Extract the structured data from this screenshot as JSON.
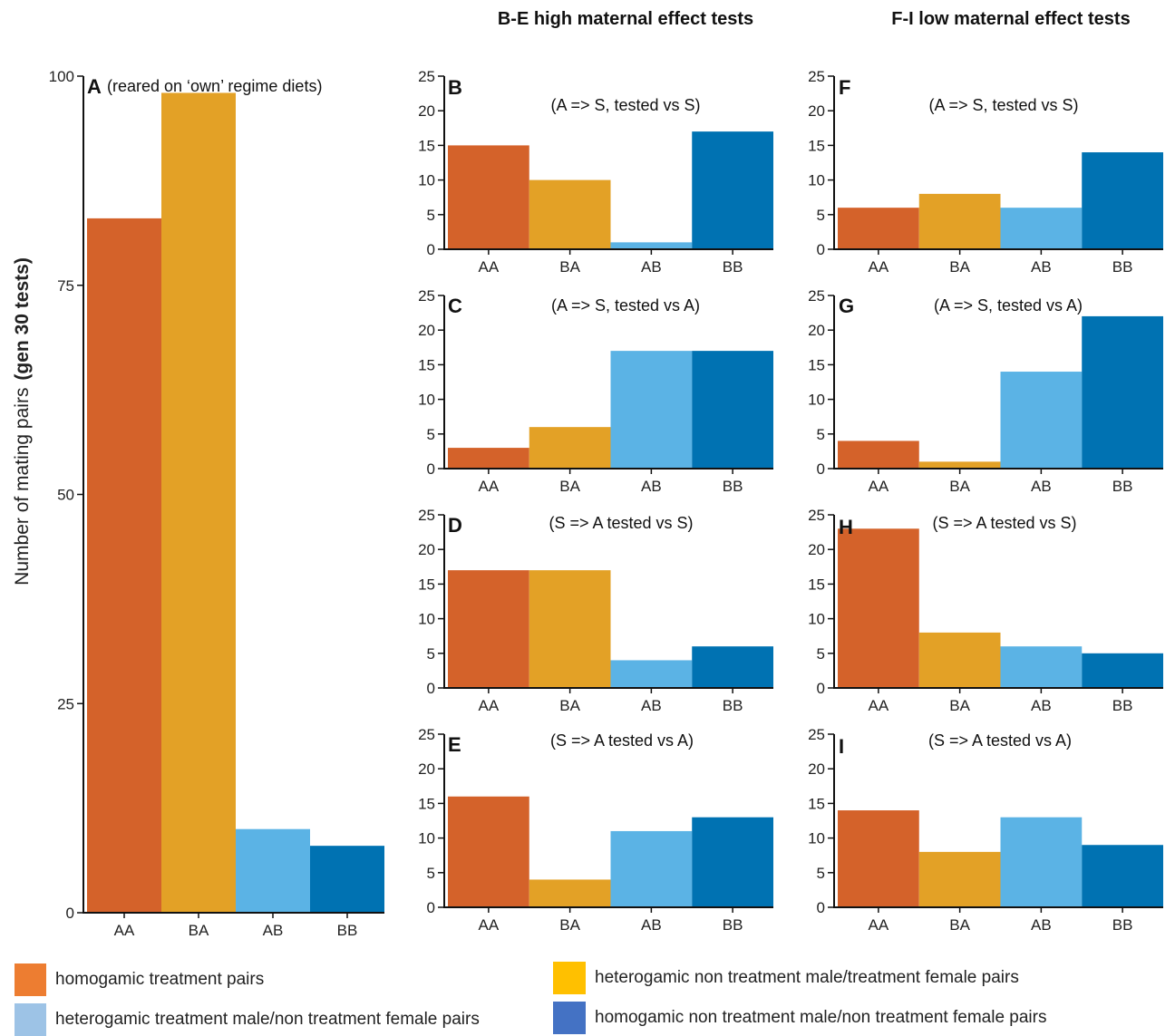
{
  "colors": {
    "AA": "#d4622a",
    "BA": "#e3a126",
    "AB": "#5bb3e5",
    "BB": "#0072b2"
  },
  "group_titles": {
    "high": "B-E high maternal effect tests",
    "low": "F-I low maternal effect tests"
  },
  "ylabel": {
    "main": "Number of mating pairs",
    "bold": "(gen 30 tests)"
  },
  "legend": [
    {
      "label": "homogamic treatment pairs",
      "color": "#ed7d31"
    },
    {
      "label": "heterogamic non treatment male/treatment female pairs",
      "color": "#ffc000"
    },
    {
      "label": "heterogamic treatment male/non treatment female pairs",
      "color": "#9dc3e6"
    },
    {
      "label": "homogamic non treatment male/non treatment female pairs",
      "color": "#4472c4"
    }
  ],
  "chart_data": [
    {
      "id": "A",
      "type": "bar",
      "letter": "A",
      "subtitle": "(reared on ‘own’ regime diets)",
      "categories": [
        "AA",
        "BA",
        "AB",
        "BB"
      ],
      "values": [
        83,
        98,
        10,
        8
      ],
      "ylim": [
        0,
        100
      ],
      "yticks": [
        0,
        25,
        50,
        75,
        100
      ]
    },
    {
      "id": "B",
      "type": "bar",
      "letter": "B",
      "subtitle": "(A => S, tested vs S)",
      "categories": [
        "AA",
        "BA",
        "AB",
        "BB"
      ],
      "values": [
        15,
        10,
        1,
        17
      ],
      "ylim": [
        0,
        25
      ],
      "yticks": [
        0,
        5,
        10,
        15,
        20,
        25
      ]
    },
    {
      "id": "C",
      "type": "bar",
      "letter": "C",
      "subtitle": "(A => S, tested vs A)",
      "categories": [
        "AA",
        "BA",
        "AB",
        "BB"
      ],
      "values": [
        3,
        6,
        17,
        17
      ],
      "ylim": [
        0,
        25
      ],
      "yticks": [
        0,
        5,
        10,
        15,
        20,
        25
      ]
    },
    {
      "id": "D",
      "type": "bar",
      "letter": "D",
      "subtitle": "(S => A tested vs S)",
      "categories": [
        "AA",
        "BA",
        "AB",
        "BB"
      ],
      "values": [
        17,
        17,
        4,
        6
      ],
      "ylim": [
        0,
        25
      ],
      "yticks": [
        0,
        5,
        10,
        15,
        20,
        25
      ]
    },
    {
      "id": "E",
      "type": "bar",
      "letter": "E",
      "subtitle": "(S => A tested vs A)",
      "categories": [
        "AA",
        "BA",
        "AB",
        "BB"
      ],
      "values": [
        16,
        4,
        11,
        13
      ],
      "ylim": [
        0,
        25
      ],
      "yticks": [
        0,
        5,
        10,
        15,
        20,
        25
      ]
    },
    {
      "id": "F",
      "type": "bar",
      "letter": "F",
      "subtitle": "(A => S, tested vs S)",
      "categories": [
        "AA",
        "BA",
        "AB",
        "BB"
      ],
      "values": [
        6,
        8,
        6,
        14
      ],
      "ylim": [
        0,
        25
      ],
      "yticks": [
        0,
        5,
        10,
        15,
        20,
        25
      ]
    },
    {
      "id": "G",
      "type": "bar",
      "letter": "G",
      "subtitle": "(A => S, tested vs A)",
      "categories": [
        "AA",
        "BA",
        "AB",
        "BB"
      ],
      "values": [
        4,
        1,
        14,
        22
      ],
      "ylim": [
        0,
        25
      ],
      "yticks": [
        0,
        5,
        10,
        15,
        20,
        25
      ]
    },
    {
      "id": "H",
      "type": "bar",
      "letter": "H",
      "subtitle": "(S => A tested vs S)",
      "categories": [
        "AA",
        "BA",
        "AB",
        "BB"
      ],
      "values": [
        23,
        8,
        6,
        5
      ],
      "ylim": [
        0,
        25
      ],
      "yticks": [
        0,
        5,
        10,
        15,
        20,
        25
      ]
    },
    {
      "id": "I",
      "type": "bar",
      "letter": "I",
      "subtitle": "(S => A tested vs A)",
      "categories": [
        "AA",
        "BA",
        "AB",
        "BB"
      ],
      "values": [
        14,
        8,
        13,
        9
      ],
      "ylim": [
        0,
        25
      ],
      "yticks": [
        0,
        5,
        10,
        15,
        20,
        25
      ]
    }
  ]
}
